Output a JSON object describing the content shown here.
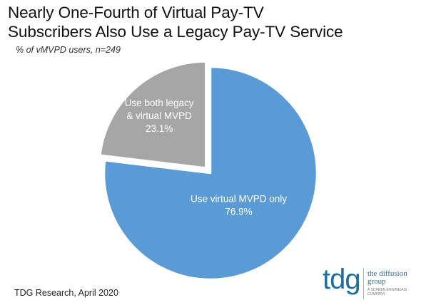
{
  "chart_data": {
    "type": "pie",
    "title_lines": [
      "Nearly One-Fourth of Virtual Pay-TV",
      "Subscribers Also Use a Legacy Pay-TV Service"
    ],
    "subtitle": "% of vMVPD users, n=249",
    "start": "12 o'clock",
    "direction": "clockwise",
    "slices": [
      {
        "label_lines": [
          "Use virtual MVPD only"
        ],
        "value": 76.9,
        "value_label": "76.9%",
        "color": "#5b9bd5",
        "exploded": false
      },
      {
        "label_lines": [
          "Use both legacy",
          "& virtual MVPD"
        ],
        "value": 23.1,
        "value_label": "23.1%",
        "color": "#a6a6a6",
        "exploded": true
      }
    ]
  },
  "footer": {
    "source": "TDG Research, April 2020"
  },
  "logo": {
    "mark": "tdg",
    "name_lines": [
      "the diffusion",
      "group"
    ],
    "tagline_lines": [
      "A SCREEN ENGINE/ASI",
      "COMPANY"
    ],
    "color": "#1f6f9a"
  }
}
